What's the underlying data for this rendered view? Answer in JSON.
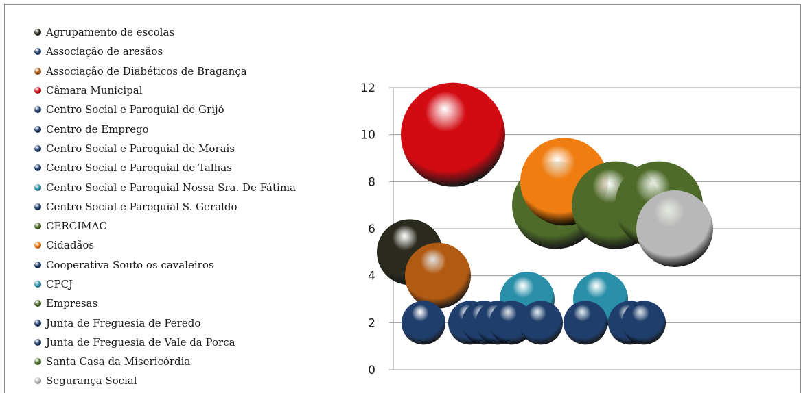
{
  "chart_data": {
    "type": "bubble",
    "ylim": [
      0,
      12
    ],
    "yticks": [
      0,
      2,
      4,
      6,
      8,
      10,
      12
    ],
    "grid": true,
    "legend_position": "left",
    "colors": {
      "dark_blue": "#1f3e6b",
      "black": "#2b2a1f",
      "brown": "#b15a13",
      "red": "#d20a12",
      "teal": "#2a8fa8",
      "olive": "#4e6b2a",
      "orange": "#ef7d12",
      "gray": "#b8b8b8"
    },
    "series": [
      {
        "name": "Agrupamento de escolas",
        "color": "#2b2a1f",
        "y": 5,
        "size": 1.2
      },
      {
        "name": "Associação de aresãos",
        "color": "#1f3e6b",
        "y": 2,
        "size": 0.8
      },
      {
        "name": "Associação de Diabéticos de Bragança",
        "color": "#b15a13",
        "y": 4,
        "size": 1.2
      },
      {
        "name": "Câmara Municipal",
        "color": "#d20a12",
        "y": 10,
        "size": 1.9
      },
      {
        "name": "Centro  Social e Paroquial de Grijó",
        "color": "#1f3e6b",
        "y": 2,
        "size": 0.8
      },
      {
        "name": "Centro de Emprego",
        "color": "#1f3e6b",
        "y": 2,
        "size": 0.8
      },
      {
        "name": "Centro Social e Paroquial de Morais",
        "color": "#1f3e6b",
        "y": 2,
        "size": 0.8
      },
      {
        "name": "Centro Social e Paroquial de Talhas",
        "color": "#1f3e6b",
        "y": 2,
        "size": 0.8
      },
      {
        "name": "Centro Social e Paroquial Nossa Sra. De Fátima",
        "color": "#2a8fa8",
        "y": 3,
        "size": 1.0
      },
      {
        "name": "Centro Social e Paroquial S. Geraldo",
        "color": "#1f3e6b",
        "y": 2,
        "size": 0.8
      },
      {
        "name": "CERCIMAC",
        "color": "#4e6b2a",
        "y": 7,
        "size": 1.6
      },
      {
        "name": "Cidadãos",
        "color": "#ef7d12",
        "y": 8,
        "size": 1.6
      },
      {
        "name": "Cooperativa Souto os cavaleiros",
        "color": "#1f3e6b",
        "y": 2,
        "size": 0.8
      },
      {
        "name": "CPCJ",
        "color": "#2a8fa8",
        "y": 3,
        "size": 1.0
      },
      {
        "name": "Empresas",
        "color": "#4e6b2a",
        "y": 7,
        "size": 1.6
      },
      {
        "name": "Junta de Freguesia de Peredo",
        "color": "#1f3e6b",
        "y": 2,
        "size": 0.8
      },
      {
        "name": "Junta de Freguesia de Vale da Porca",
        "color": "#1f3e6b",
        "y": 2,
        "size": 0.8
      },
      {
        "name": "Santa Casa da Misericórdia",
        "color": "#4e6b2a",
        "y": 7,
        "size": 1.6
      },
      {
        "name": "Segurança Social",
        "color": "#b8b8b8",
        "y": 6,
        "size": 1.4
      }
    ]
  }
}
